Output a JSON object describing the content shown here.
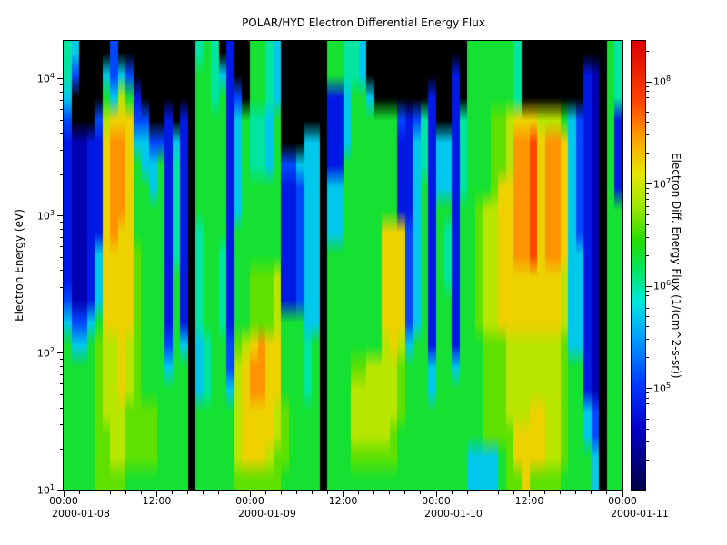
{
  "chart_data": {
    "type": "heatmap",
    "title": "POLAR/HYD  Electron Differential Energy Flux",
    "ylabel": "Electron Energy (eV)",
    "colorbar_label": "Electron Diff. Energy Flux (1/(cm^2-s-sr))",
    "x_axis": {
      "start": "2000-01-08 00:00",
      "end": "2000-01-11 00:00",
      "major_tick_labels": [
        "00:00",
        "12:00",
        "00:00",
        "12:00",
        "00:00",
        "12:00",
        "00:00"
      ],
      "date_labels": [
        "2000-01-08",
        "2000-01-09",
        "2000-01-10",
        "2000-01-11"
      ],
      "minor_tick_interval_hours": 2
    },
    "y_axis": {
      "scale": "log",
      "units": "eV",
      "min_exp": 1.0,
      "max_exp": 4.276,
      "major_tick_exps": [
        1,
        2,
        3,
        4
      ]
    },
    "colorbar": {
      "scale": "log",
      "units": "1/(cm^2-s-sr)",
      "min_exp": 4.0,
      "max_exp": 8.4,
      "major_tick_exps": [
        8,
        7,
        6,
        5
      ]
    },
    "grid": {
      "columns": 72,
      "column_duration_hours": 1,
      "rows": 20,
      "order": "top_to_bottom",
      "value_units": "log10 of differential energy flux",
      "encoding": {
        ".": null,
        "0": 4.5,
        "1": 4.8,
        "2": 5.1,
        "3": 5.4,
        "4": 5.7,
        "5": 6.0,
        "6": 6.3,
        "7": 6.6,
        "8": 6.9,
        "9": 7.2,
        "a": 7.5,
        "b": 7.8
      },
      "rows_data": [
        "54....2..... .....565.1.. 6654......66 554......... ....6666665. ..........65",
        "52...4242... .....66541.. 6654......66 554......... ..1.6666665. .......10.65",
        "4....64861.. .....665612. 6654......11 4664.......1 ..1.6666665. .......10.65",
        "2...2899922. .1.1.6666146 5546......11 466666621251 ..1566677899 988864210.61",
        "100119aa9442 2141.6666146 5546...44.11 466666611451 4415666778aa b9aa94210.61",
        "100119aa9644 6151.6666146 554622444.11 666666611451 4415666778aa b9aa94210.61",
        "100119aa9664 6151.6666146 666611244.44 666666611461 4415666799aa b9aa94210.61",
        "100119aa9666 6151.6666146 666611244.44 666666611461 6616678899aa b9aa94210.66",
        "100119a99666 6151.5666166 666611244.44 666669992461 6516678899aa b9aa94210.66",
        "100149999766 6151.5665166 666611244.66 666669992461 6516678899aa b9aa94410.66",
        "100149999766 6161.5665166 777811244.66 666669992461 651667889999 999984410.66",
        "200149999766 6161.5665166 777811244.66 666669992461 661667889999 999984410.66",
        "422469999766 6161.5665166 777866644.66 666669992461 661667889999 999984410.66",
        "644678898766 6264.4566278 9a9966656.66 666668984661 661666777888 888874410.66",
        "666678898766 6466.4566289 aa9966656.66 677888876664 664666777888 888876610.66",
        "666678898766 6666.4566489 aa9966656.66 688888876664 666666777888 888876610.66",
        "666678887777 6666.6666689 999876666.66 688888876666 666666777888 998876642.66",
        "666677887777 6666.6666689 999876666.66 688888766666 666666777799 998876642.66",
        "666677887777 6666.6666689 998776666.66 677777766666 666644446799 998876664.66",
        "666677776666 6666.6666677 777766666.66 666666666666 666644446779 777766664.66"
      ]
    },
    "colormap_stops": [
      [
        4.0,
        "#000046"
      ],
      [
        4.6,
        "#0000C8"
      ],
      [
        5.0,
        "#0032FF"
      ],
      [
        5.5,
        "#00A0FF"
      ],
      [
        5.85,
        "#00E6DC"
      ],
      [
        6.15,
        "#00E664"
      ],
      [
        6.45,
        "#28DC00"
      ],
      [
        6.75,
        "#96E600"
      ],
      [
        7.1,
        "#E6E600"
      ],
      [
        7.45,
        "#FFA000"
      ],
      [
        7.8,
        "#FF4600"
      ],
      [
        8.4,
        "#DC0000"
      ]
    ],
    "background": "#FFFFFF",
    "plot_background": "#000000",
    "frame_color": "#000000"
  }
}
